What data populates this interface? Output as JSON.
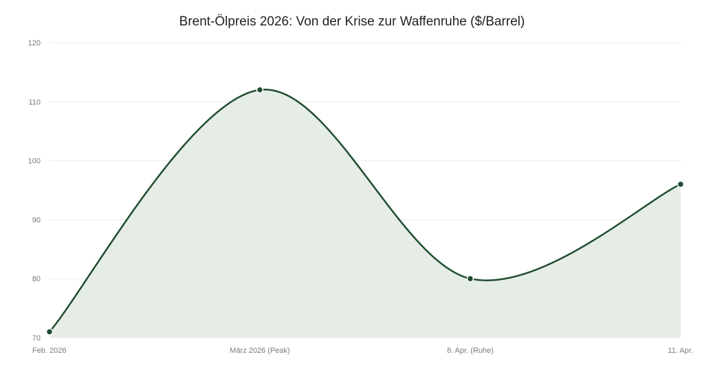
{
  "chart_data": {
    "type": "area",
    "title": "Brent-Ölpreis 2026: Von der Krise zur Waffenruhe ($/Barrel)",
    "xlabel": "",
    "ylabel": "",
    "categories": [
      "Feb. 2026",
      "März 2026 (Peak)",
      "8. Apr. (Ruhe)",
      "11. Apr."
    ],
    "series": [
      {
        "values": [
          71,
          112,
          80,
          96
        ]
      }
    ],
    "ylim": [
      70,
      120
    ],
    "yticks": [
      70,
      80,
      90,
      100,
      110,
      120
    ],
    "grid": true,
    "legend": "none",
    "colors": {
      "line": "#1f4d2e",
      "fill": "#e6ece6",
      "point_stroke": "#ffffff"
    }
  }
}
